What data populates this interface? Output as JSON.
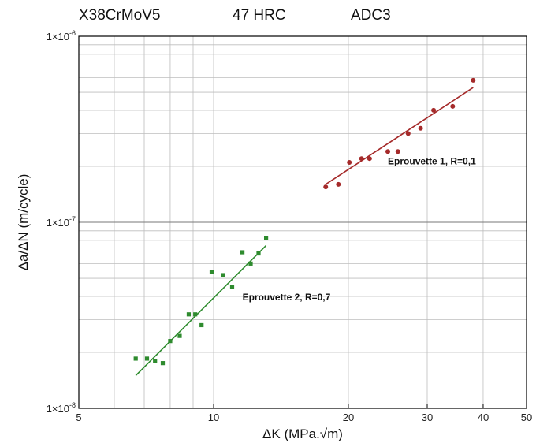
{
  "header": {
    "material": "X38CrMoV5",
    "hardness": "47 HRC",
    "grade": "ADC3"
  },
  "chart_data": {
    "type": "scatter",
    "title": "",
    "xlabel": "ΔK (MPa.√m)",
    "ylabel": "Δa/ΔN (m/cycle)",
    "xscale": "log",
    "yscale": "log",
    "xlim": [
      5,
      50
    ],
    "ylim": [
      1e-08,
      1e-06
    ],
    "xticks": [
      5,
      10,
      20,
      30,
      40,
      50
    ],
    "xtick_labels": [
      "5",
      "10",
      "20",
      "30",
      "40",
      "50"
    ],
    "yticks": [
      {
        "value": 1e-06,
        "base": "1×10",
        "exp": "-6"
      },
      {
        "value": 1e-07,
        "base": "1×10",
        "exp": "-7"
      },
      {
        "value": 1e-08,
        "base": "1×10",
        "exp": "-8"
      }
    ],
    "grid": true,
    "series": [
      {
        "name": "Eprouvette 1, R=0,1",
        "color": "#a52a2a",
        "marker": "circle",
        "x": [
          17.8,
          19.0,
          20.1,
          21.4,
          22.3,
          24.5,
          25.8,
          27.2,
          29.0,
          31.0,
          34.2,
          38.0
        ],
        "y": [
          1.55e-07,
          1.6e-07,
          2.1e-07,
          2.2e-07,
          2.2e-07,
          2.4e-07,
          2.4e-07,
          3e-07,
          3.2e-07,
          4e-07,
          4.2e-07,
          5.8e-07
        ],
        "fit": {
          "x": [
            17.8,
            38.0
          ],
          "y": [
            1.6e-07,
            5.3e-07
          ]
        },
        "annotation": {
          "text": "Eprouvette 1, R=0,1",
          "x": 24.5,
          "y": 2.05e-07
        }
      },
      {
        "name": "Eprouvette 2, R=0,7",
        "color": "#2e8b2e",
        "marker": "square",
        "x": [
          6.7,
          7.1,
          7.4,
          7.7,
          8.0,
          8.4,
          8.8,
          9.1,
          9.4,
          9.9,
          10.5,
          11.0,
          11.6,
          12.1,
          12.6,
          13.1
        ],
        "y": [
          1.85e-08,
          1.85e-08,
          1.8e-08,
          1.75e-08,
          2.3e-08,
          2.45e-08,
          3.2e-08,
          3.2e-08,
          2.8e-08,
          5.4e-08,
          5.2e-08,
          4.5e-08,
          6.9e-08,
          6e-08,
          6.8e-08,
          8.2e-08
        ],
        "fit": {
          "x": [
            6.7,
            13.1
          ],
          "y": [
            1.5e-08,
            7.5e-08
          ]
        },
        "annotation": {
          "text": "Eprouvette 2, R=0,7",
          "x": 11.6,
          "y": 3.8e-08
        }
      }
    ]
  }
}
